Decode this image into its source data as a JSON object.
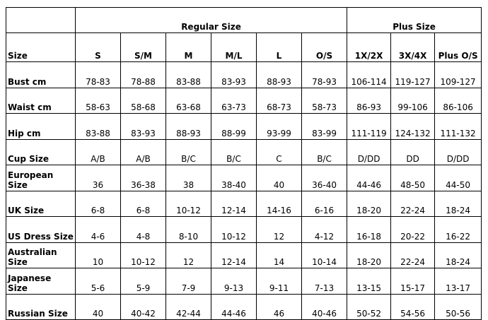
{
  "table": {
    "groups": [
      "Regular Size",
      "Plus Size"
    ],
    "columns": [
      "Size",
      "S",
      "S/M",
      "M",
      "M/L",
      "L",
      "O/S",
      "1X/2X",
      "3X/4X",
      "Plus O/S"
    ],
    "rows": [
      [
        "Bust cm",
        "78-83",
        "78-88",
        "83-88",
        "83-93",
        "88-93",
        "78-93",
        "106-114",
        "119-127",
        "109-127"
      ],
      [
        "Waist cm",
        "58-63",
        "58-68",
        "63-68",
        "63-73",
        "68-73",
        "58-73",
        "86-93",
        "99-106",
        "86-106"
      ],
      [
        "Hip cm",
        "83-88",
        "83-93",
        "88-93",
        "88-99",
        "93-99",
        "83-99",
        "111-119",
        "124-132",
        "111-132"
      ],
      [
        "Cup Size",
        "A/B",
        "A/B",
        "B/C",
        "B/C",
        "C",
        "B/C",
        "D/DD",
        "DD",
        "D/DD"
      ],
      [
        "European Size",
        "36",
        "36-38",
        "38",
        "38-40",
        "40",
        "36-40",
        "44-46",
        "48-50",
        "44-50"
      ],
      [
        "UK Size",
        "6-8",
        "6-8",
        "10-12",
        "12-14",
        "14-16",
        "6-16",
        "18-20",
        "22-24",
        "18-24"
      ],
      [
        "US Dress Size",
        "4-6",
        "4-8",
        "8-10",
        "10-12",
        "12",
        "4-12",
        "16-18",
        "20-22",
        "16-22"
      ],
      [
        "Australian Size",
        "10",
        "10-12",
        "12",
        "12-14",
        "14",
        "10-14",
        "18-20",
        "22-24",
        "18-24"
      ],
      [
        "Japanese Size",
        "5-6",
        "5-9",
        "7-9",
        "9-13",
        "9-11",
        "7-13",
        "13-15",
        "15-17",
        "13-17"
      ],
      [
        "Russian Size",
        "40",
        "40-42",
        "42-44",
        "44-46",
        "46",
        "40-46",
        "50-52",
        "54-56",
        "50-56"
      ]
    ]
  }
}
